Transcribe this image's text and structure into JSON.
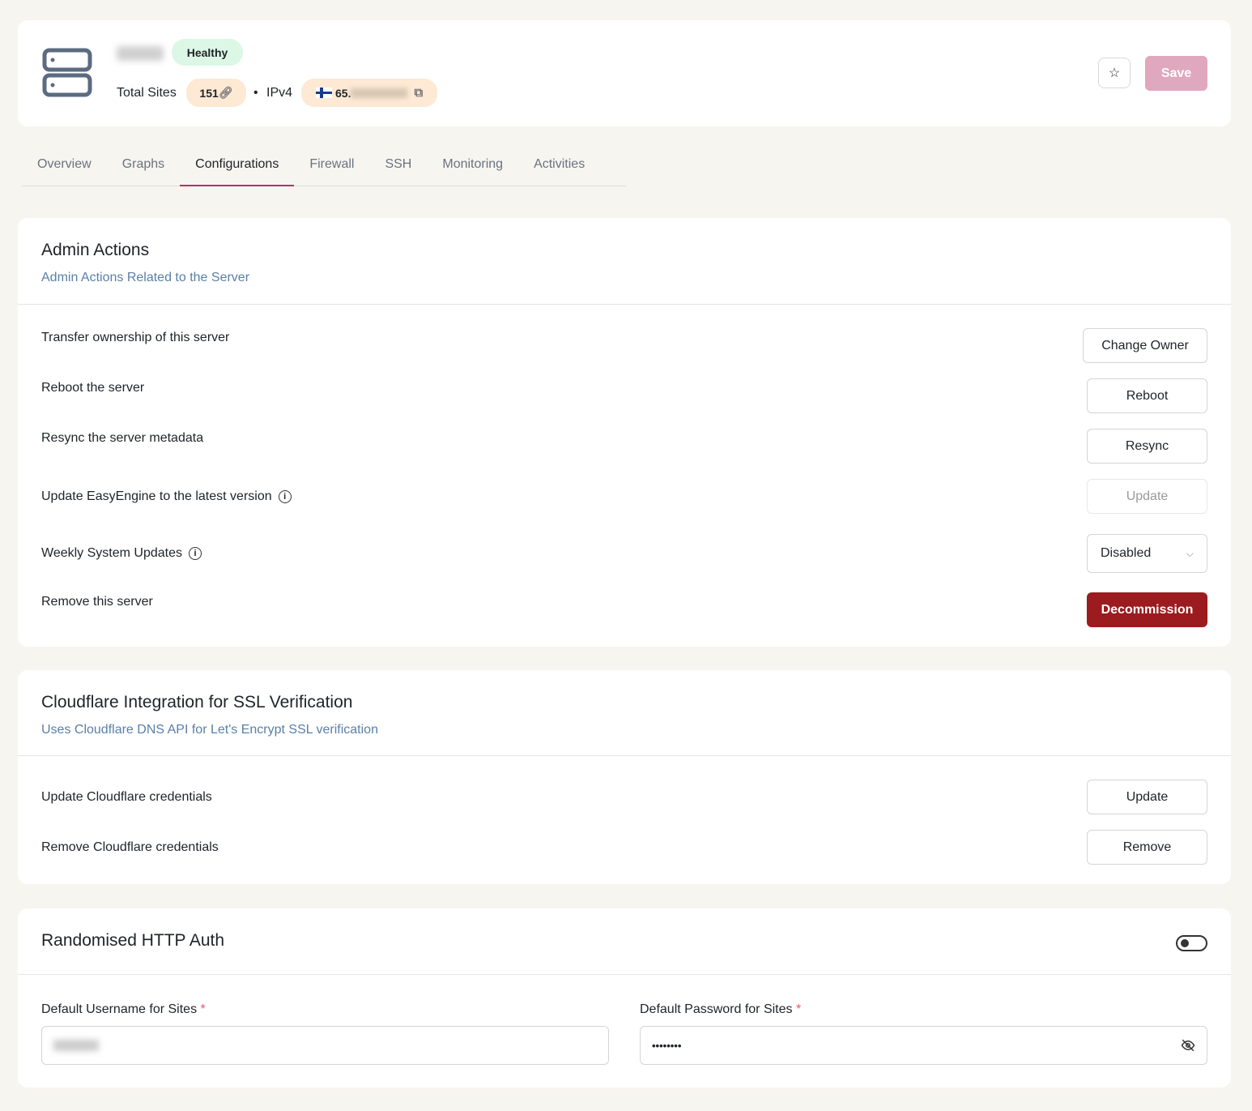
{
  "header": {
    "status": "Healthy",
    "total_sites_label": "Total Sites",
    "total_sites": "151",
    "ip_label": "IPv4",
    "ip_prefix": "65.",
    "save_label": "Save",
    "flag": "finland-flag",
    "status_color": "#dcf7e6"
  },
  "tabs": [
    "Overview",
    "Graphs",
    "Configurations",
    "Firewall",
    "SSH",
    "Monitoring",
    "Activities"
  ],
  "active_tab": "Configurations",
  "admin": {
    "title": "Admin Actions",
    "subtitle": "Admin Actions Related to the Server",
    "rows": [
      {
        "label": "Transfer ownership of this server",
        "action": "Change Owner"
      },
      {
        "label": "Reboot the server",
        "action": "Reboot"
      },
      {
        "label": "Resync the server metadata",
        "action": "Resync"
      },
      {
        "label": "Update EasyEngine to the latest version",
        "action": "Update"
      },
      {
        "label": "Weekly System Updates",
        "action": "Disabled"
      },
      {
        "label": "Remove this server",
        "action": "Decommission"
      }
    ]
  },
  "cloudflare": {
    "title": "Cloudflare Integration for SSL Verification",
    "subtitle": "Uses Cloudflare DNS API for Let's Encrypt SSL verification",
    "rows": [
      {
        "label": "Update Cloudflare credentials",
        "action": "Update"
      },
      {
        "label": "Remove Cloudflare credentials",
        "action": "Remove"
      }
    ]
  },
  "http_auth": {
    "title": "Randomised HTTP Auth",
    "enabled": false,
    "username_label": "Default Username for Sites",
    "password_label": "Default Password for Sites",
    "required_mark": "*",
    "password_value": "••••••••"
  },
  "colors": {
    "accent": "#b4306a",
    "danger": "#9b1b1e",
    "badge_orange": "#fde9d4"
  }
}
